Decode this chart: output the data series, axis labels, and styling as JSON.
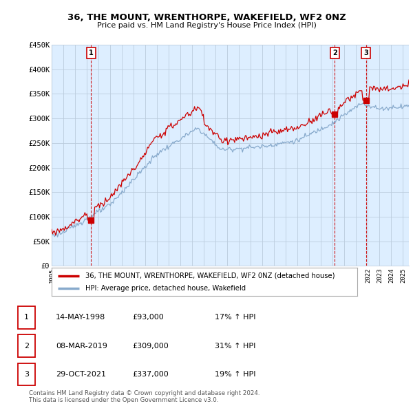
{
  "title": "36, THE MOUNT, WRENTHORPE, WAKEFIELD, WF2 0NZ",
  "subtitle": "Price paid vs. HM Land Registry's House Price Index (HPI)",
  "ylim": [
    0,
    450000
  ],
  "yticks": [
    0,
    50000,
    100000,
    150000,
    200000,
    250000,
    300000,
    350000,
    400000,
    450000
  ],
  "ytick_labels": [
    "£0",
    "£50K",
    "£100K",
    "£150K",
    "£200K",
    "£250K",
    "£300K",
    "£350K",
    "£400K",
    "£450K"
  ],
  "background_color": "#ffffff",
  "chart_bg_color": "#ddeeff",
  "grid_color": "#bbccdd",
  "sales": [
    {
      "label": "1",
      "year": 1998.37,
      "price": 93000
    },
    {
      "label": "2",
      "year": 2019.18,
      "price": 309000
    },
    {
      "label": "3",
      "year": 2021.83,
      "price": 337000
    }
  ],
  "table_rows": [
    [
      "1",
      "14-MAY-1998",
      "£93,000",
      "17% ↑ HPI"
    ],
    [
      "2",
      "08-MAR-2019",
      "£309,000",
      "31% ↑ HPI"
    ],
    [
      "3",
      "29-OCT-2021",
      "£337,000",
      "19% ↑ HPI"
    ]
  ],
  "legend_property_label": "36, THE MOUNT, WRENTHORPE, WAKEFIELD, WF2 0NZ (detached house)",
  "legend_hpi_label": "HPI: Average price, detached house, Wakefield",
  "footer_line1": "Contains HM Land Registry data © Crown copyright and database right 2024.",
  "footer_line2": "This data is licensed under the Open Government Licence v3.0.",
  "line_color_property": "#cc0000",
  "line_color_hpi": "#88aacc",
  "marker_color": "#cc0000",
  "dashed_color": "#cc0000",
  "x_start": 1995.0,
  "x_end": 2025.5,
  "xticks": [
    1995,
    1996,
    1997,
    1998,
    1999,
    2000,
    2001,
    2002,
    2003,
    2004,
    2005,
    2006,
    2007,
    2008,
    2009,
    2010,
    2011,
    2012,
    2013,
    2014,
    2015,
    2016,
    2017,
    2018,
    2019,
    2020,
    2021,
    2022,
    2023,
    2024,
    2025
  ]
}
